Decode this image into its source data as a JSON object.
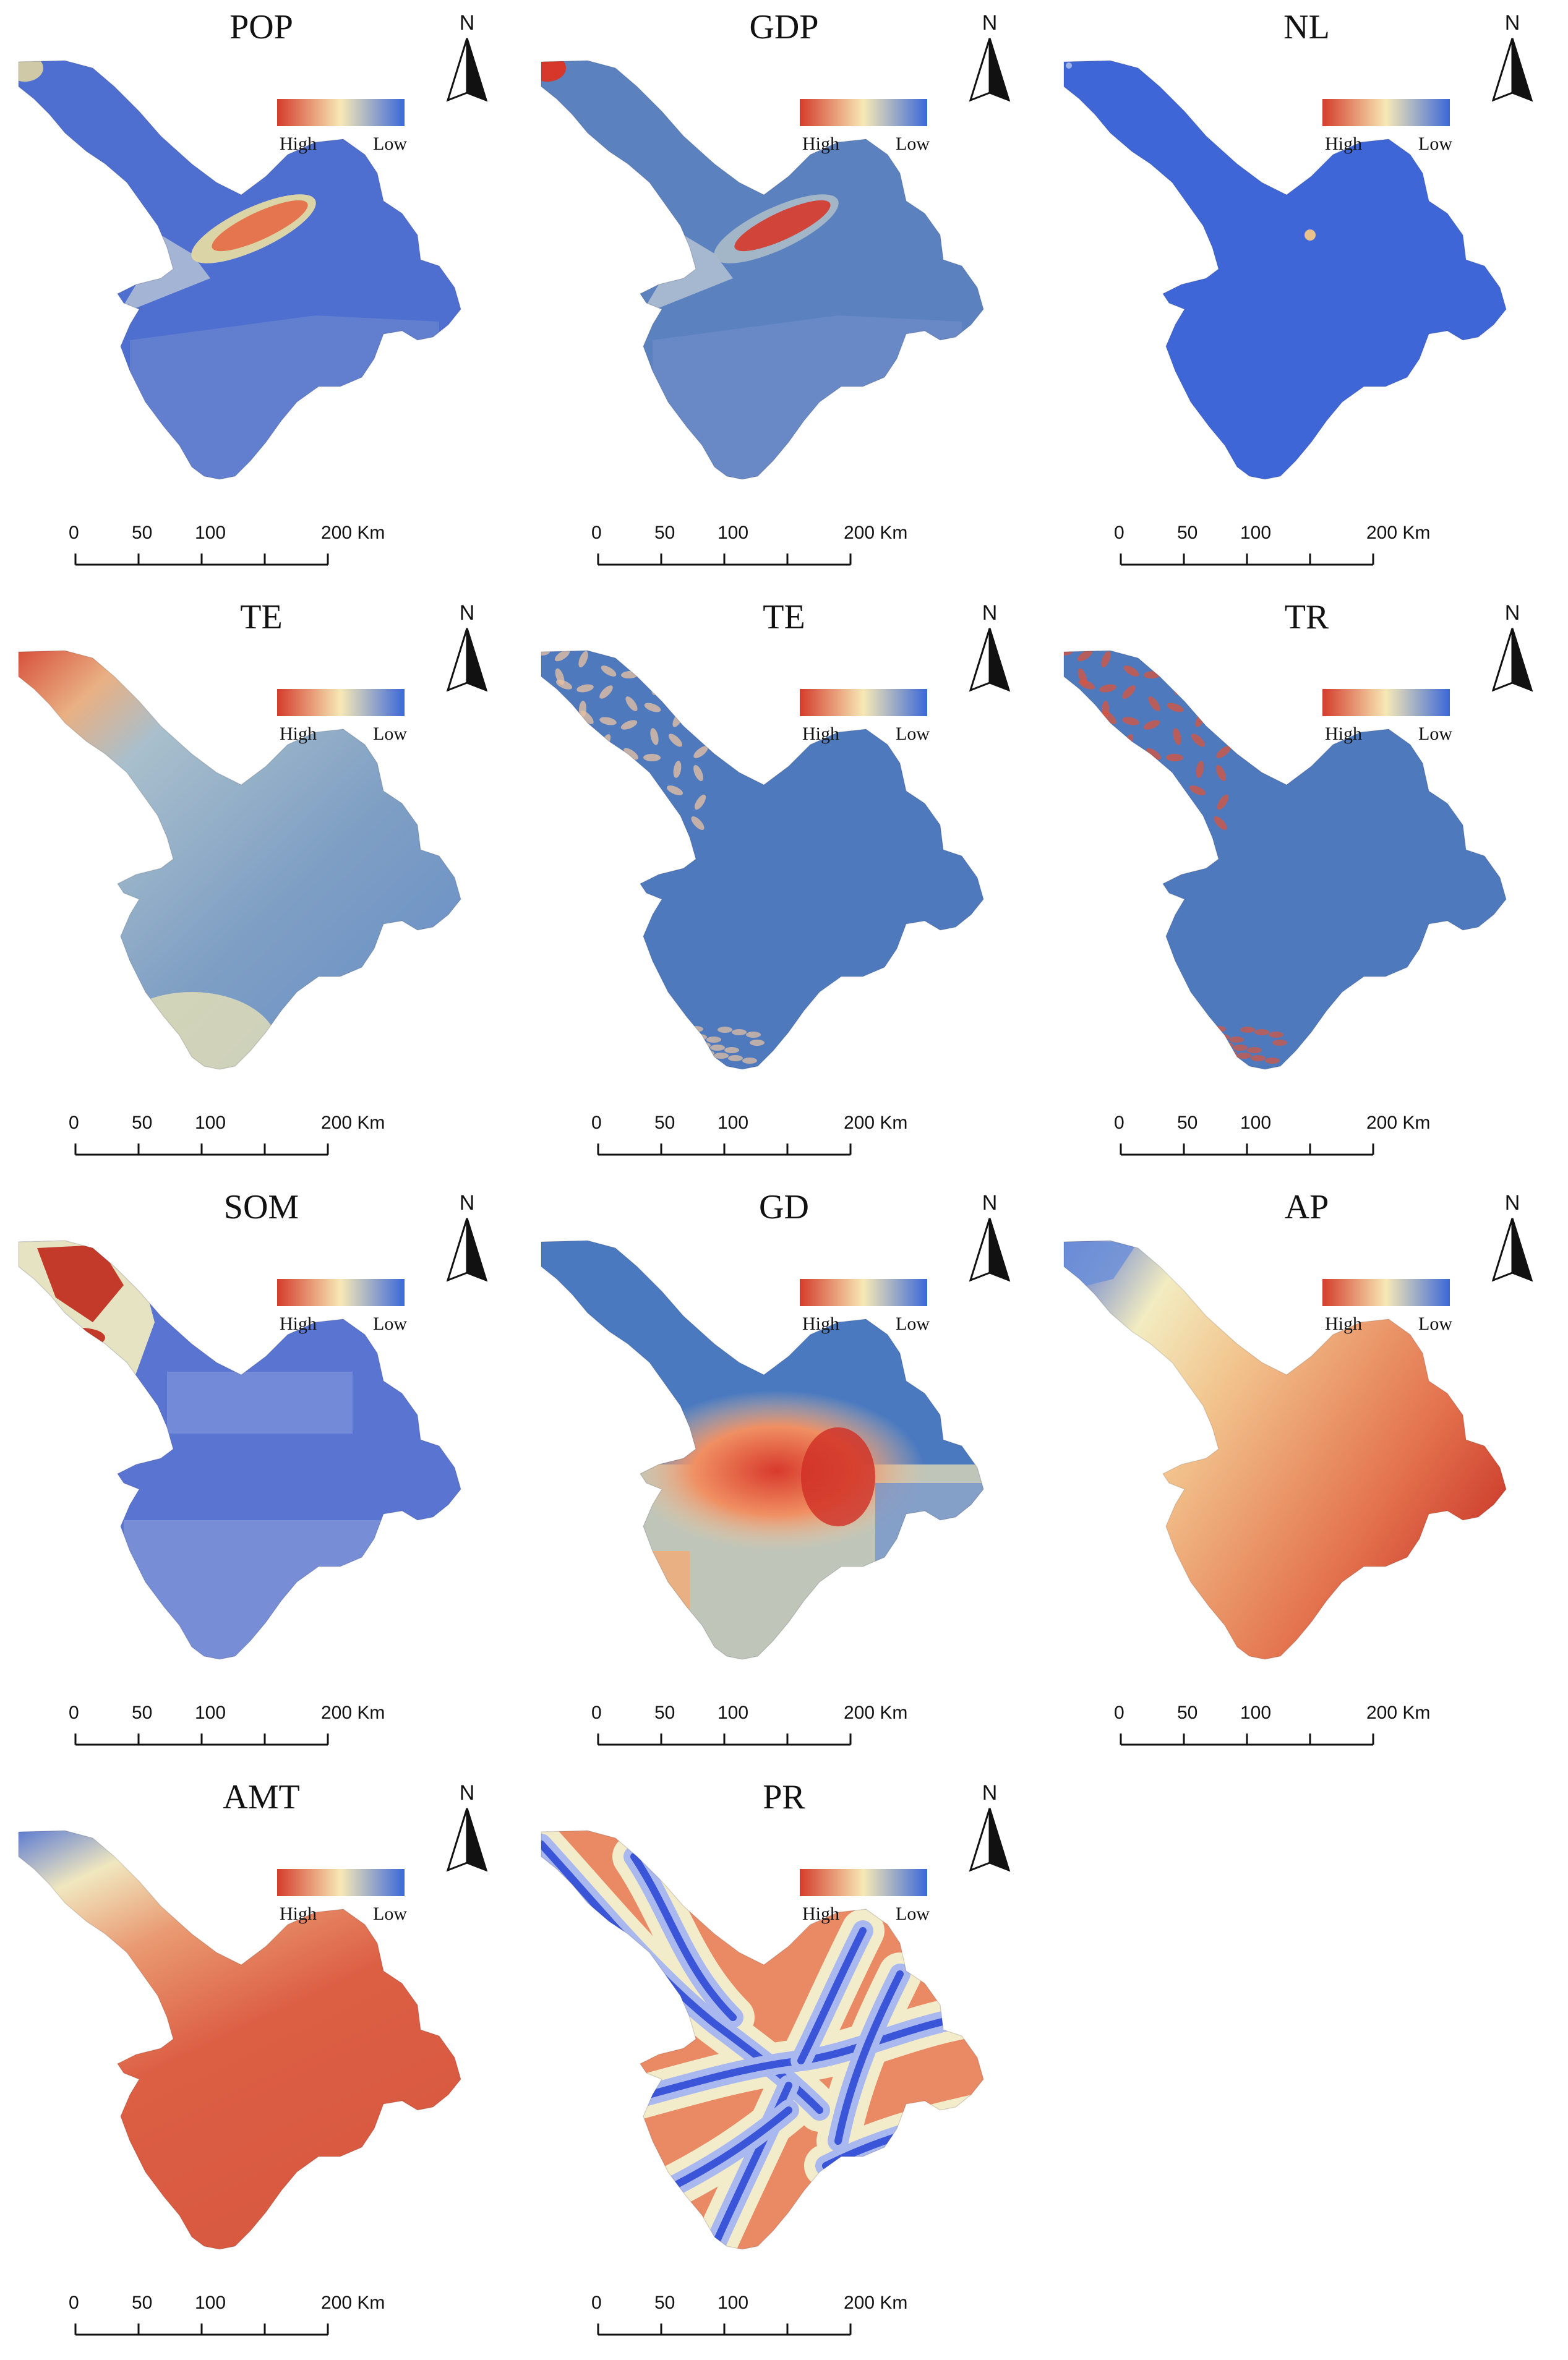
{
  "legend": {
    "high": "High",
    "low": "Low",
    "colors": [
      "#d43d2c",
      "#f7e9b5",
      "#3b68d8"
    ]
  },
  "north_label": "N",
  "scale": {
    "ticks": [
      "0",
      "50",
      "100",
      "200"
    ],
    "unit": "Km"
  },
  "panels": [
    {
      "title": "POP",
      "pattern": "urban",
      "base": "#4f6fd0",
      "accent": "#e3d9a3"
    },
    {
      "title": "GDP",
      "pattern": "urban-strong",
      "base": "#5b82bf",
      "accent": "#a8b8c8"
    },
    {
      "title": "NL",
      "pattern": "uniform",
      "base": "#3f66d6",
      "accent": "#3f66d6"
    },
    {
      "title": "TE",
      "pattern": "elevation",
      "base": "#6f93c4",
      "accent": "#d43d2c"
    },
    {
      "title": "TE",
      "pattern": "texture",
      "base": "#4f79bd",
      "accent": "#e8b79a"
    },
    {
      "title": "TR",
      "pattern": "texture-red",
      "base": "#4f79bd",
      "accent": "#d9553d"
    },
    {
      "title": "SOM",
      "pattern": "soil",
      "base": "#5a74d2",
      "accent": "#c33a2b"
    },
    {
      "title": "GD",
      "pattern": "hotspot",
      "base": "#4a79c0",
      "accent": "#d83a2c"
    },
    {
      "title": "AP",
      "pattern": "gradient-ap",
      "base": "#e0714f",
      "accent": "#3559d6"
    },
    {
      "title": "AMT",
      "pattern": "gradient-amt",
      "base": "#db5a3f",
      "accent": "#3f66d6"
    },
    {
      "title": "PR",
      "pattern": "rivers",
      "base": "#f3efd2",
      "accent": "#3b55d8"
    }
  ]
}
